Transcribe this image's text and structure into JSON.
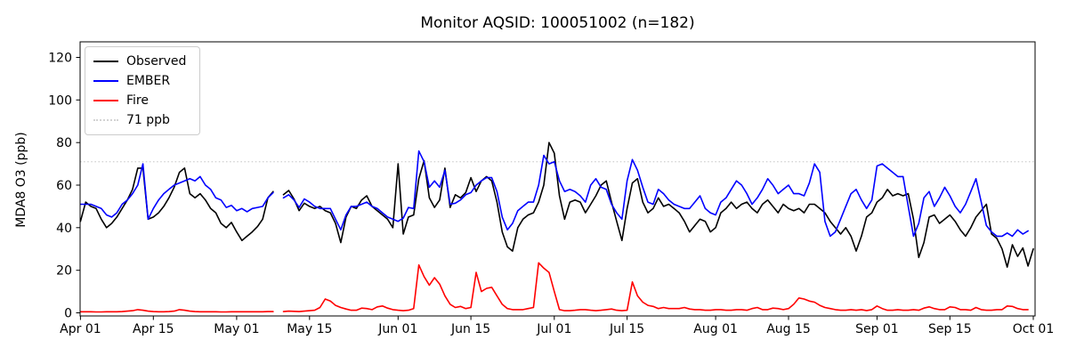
{
  "title": "Monitor AQSID: 100051002 (n=182)",
  "ylabel": "MDA8 O3 (ppb)",
  "legend": {
    "items": [
      {
        "label": "Observed",
        "color": "#000000",
        "style": "solid"
      },
      {
        "label": "EMBER",
        "color": "#0000ff",
        "style": "solid"
      },
      {
        "label": "Fire",
        "color": "#ff0000",
        "style": "solid"
      },
      {
        "label": "71 ppb",
        "color": "#d3d3d3",
        "style": "dotted"
      }
    ]
  },
  "chart_data": {
    "type": "line",
    "title": "Monitor AQSID: 100051002 (n=182)",
    "xlabel": "",
    "ylabel": "MDA8 O3 (ppb)",
    "x_start_date": "Apr 01",
    "x_end_date": "Oct 01",
    "x_tick_labels": [
      "Apr 01",
      "Apr 15",
      "May 01",
      "May 15",
      "Jun 01",
      "Jun 15",
      "Jul 01",
      "Jul 15",
      "Aug 01",
      "Aug 15",
      "Sep 01",
      "Sep 15",
      "Oct 01"
    ],
    "x_tick_day_index": [
      0,
      14,
      30,
      44,
      61,
      75,
      91,
      105,
      122,
      136,
      153,
      167,
      183
    ],
    "y_ticks": [
      0,
      20,
      40,
      60,
      80,
      100,
      120
    ],
    "ylim": [
      -1.5,
      127.5
    ],
    "grid": false,
    "legend_position": "upper left",
    "threshold": {
      "value": 71,
      "label": "71 ppb",
      "color": "#d3d3d3",
      "linestyle": "dotted"
    },
    "missing_day_index": 38,
    "missing_day_date": "May 09",
    "series": [
      {
        "name": "Observed",
        "color": "#000000",
        "values": [
          43,
          52,
          50,
          49,
          44,
          40,
          42,
          45,
          49,
          53,
          58,
          68,
          68,
          44,
          45,
          47,
          50,
          54,
          59,
          66,
          68,
          56,
          54,
          56,
          53,
          49,
          47,
          42,
          40,
          42.5,
          38,
          34,
          36,
          38,
          40.5,
          44,
          54,
          57,
          null,
          55.5,
          57.5,
          53.5,
          48,
          51.5,
          50,
          49,
          50,
          48,
          47,
          42,
          33,
          45,
          50,
          49,
          53,
          55,
          50,
          48,
          46,
          44,
          40,
          70,
          37,
          45,
          46,
          63,
          71.5,
          54,
          49.5,
          53,
          68,
          49.5,
          55.5,
          54,
          56.5,
          63.5,
          57,
          62,
          64,
          62,
          52,
          38,
          31,
          29,
          40,
          44,
          46,
          47,
          52,
          60,
          80,
          75,
          55,
          44,
          52,
          53,
          52,
          47,
          51,
          55,
          60,
          62,
          52,
          43,
          34,
          49,
          61,
          63,
          52,
          47,
          49,
          54,
          50,
          51,
          49,
          47,
          43,
          38,
          41,
          44,
          43,
          38,
          40,
          47,
          49,
          52,
          49,
          51,
          52,
          49,
          47,
          51,
          53,
          50,
          47,
          51,
          49,
          48,
          49,
          47,
          51,
          51,
          49,
          47,
          43,
          40,
          37,
          40,
          36,
          29,
          36,
          45,
          47,
          52,
          54,
          58,
          55,
          56,
          55,
          56,
          44,
          26,
          33,
          45,
          46,
          42,
          44,
          46,
          43,
          39,
          36,
          40,
          45,
          48,
          51,
          37,
          35,
          30,
          21.5,
          32,
          26.5,
          30.5,
          22,
          30
        ]
      },
      {
        "name": "EMBER",
        "color": "#0000ff",
        "values": [
          51,
          51,
          51,
          50,
          49,
          46,
          45,
          47,
          51,
          53,
          56,
          60,
          70,
          44,
          49,
          53,
          56,
          58,
          60,
          61,
          62,
          63,
          62,
          64,
          60,
          58,
          54,
          53,
          49.5,
          50.5,
          48,
          49,
          47.5,
          49,
          49.5,
          50,
          54,
          56.5,
          null,
          54,
          55.5,
          53,
          49.5,
          53.5,
          52,
          50,
          49,
          49,
          49,
          44,
          39,
          46,
          50,
          50,
          51,
          52,
          50,
          49,
          47,
          45,
          44,
          43,
          44.5,
          49.5,
          49,
          76,
          71,
          59,
          62,
          59,
          67,
          51,
          51.5,
          53,
          55.5,
          56.5,
          60,
          62,
          63.5,
          63.5,
          57,
          45,
          39,
          42,
          48,
          50,
          52,
          52,
          60,
          74,
          70,
          71,
          62,
          57,
          58,
          57,
          55,
          52,
          60,
          63,
          59,
          58,
          51,
          47,
          44,
          62,
          72,
          67,
          59,
          52,
          51,
          58,
          56,
          53,
          51,
          50,
          49,
          49,
          52,
          55,
          49,
          47,
          46,
          52,
          54,
          58,
          62,
          60,
          56,
          51,
          54,
          58,
          63,
          60,
          56,
          58,
          60,
          56,
          56,
          55,
          61,
          70,
          66,
          43,
          36,
          38,
          44,
          50,
          56,
          58,
          53,
          49,
          53,
          69,
          70,
          68,
          66,
          64,
          64,
          50,
          36,
          42,
          54,
          57,
          50,
          54,
          59,
          55,
          50,
          47,
          51,
          57,
          63,
          52,
          41,
          38,
          36,
          36,
          37.5,
          36,
          39,
          37,
          38.5
        ]
      },
      {
        "name": "Fire",
        "color": "#ff0000",
        "values": [
          0.5,
          0.5,
          0.5,
          0.4,
          0.4,
          0.5,
          0.5,
          0.5,
          0.6,
          0.8,
          1.0,
          1.5,
          1.2,
          0.8,
          0.6,
          0.5,
          0.5,
          0.6,
          0.8,
          1.5,
          1.2,
          0.8,
          0.6,
          0.5,
          0.5,
          0.5,
          0.5,
          0.4,
          0.4,
          0.5,
          0.5,
          0.5,
          0.5,
          0.5,
          0.5,
          0.5,
          0.6,
          0.6,
          null,
          0.6,
          0.8,
          0.7,
          0.6,
          0.8,
          1.0,
          1.2,
          2.5,
          6.5,
          5.5,
          3.5,
          2.5,
          1.8,
          1.2,
          1.2,
          2.2,
          2.0,
          1.5,
          2.8,
          3.2,
          2.2,
          1.5,
          1.2,
          1.0,
          1.2,
          2.0,
          22.5,
          17.0,
          13.0,
          16.5,
          13.5,
          8.0,
          4.0,
          2.5,
          3.0,
          2.0,
          2.5,
          19.0,
          10.0,
          11.5,
          12.0,
          8.0,
          4.0,
          2.0,
          1.5,
          1.5,
          1.5,
          2.0,
          2.5,
          23.5,
          21.0,
          19.0,
          10.0,
          1.5,
          1.0,
          1.0,
          1.2,
          1.5,
          1.5,
          1.2,
          1.0,
          1.2,
          1.5,
          1.8,
          1.2,
          1.0,
          1.2,
          14.5,
          8.0,
          5.0,
          3.5,
          3.0,
          2.0,
          2.5,
          2.0,
          2.0,
          2.0,
          2.5,
          1.8,
          1.5,
          1.5,
          1.2,
          1.2,
          1.5,
          1.5,
          1.2,
          1.2,
          1.5,
          1.5,
          1.2,
          2.0,
          2.5,
          1.5,
          1.5,
          2.2,
          2.0,
          1.5,
          2.0,
          4.0,
          7.0,
          6.5,
          5.5,
          5.0,
          3.5,
          2.5,
          2.0,
          1.5,
          1.2,
          1.2,
          1.5,
          1.2,
          1.5,
          1.1,
          1.5,
          3.2,
          2.0,
          1.2,
          1.2,
          1.5,
          1.2,
          1.2,
          1.5,
          1.2,
          2.2,
          2.8,
          2.0,
          1.5,
          1.5,
          2.8,
          2.5,
          1.5,
          1.5,
          1.2,
          2.5,
          1.5,
          1.2,
          1.2,
          1.5,
          1.5,
          3.2,
          3.0,
          2.0,
          1.5,
          1.5
        ]
      }
    ]
  }
}
